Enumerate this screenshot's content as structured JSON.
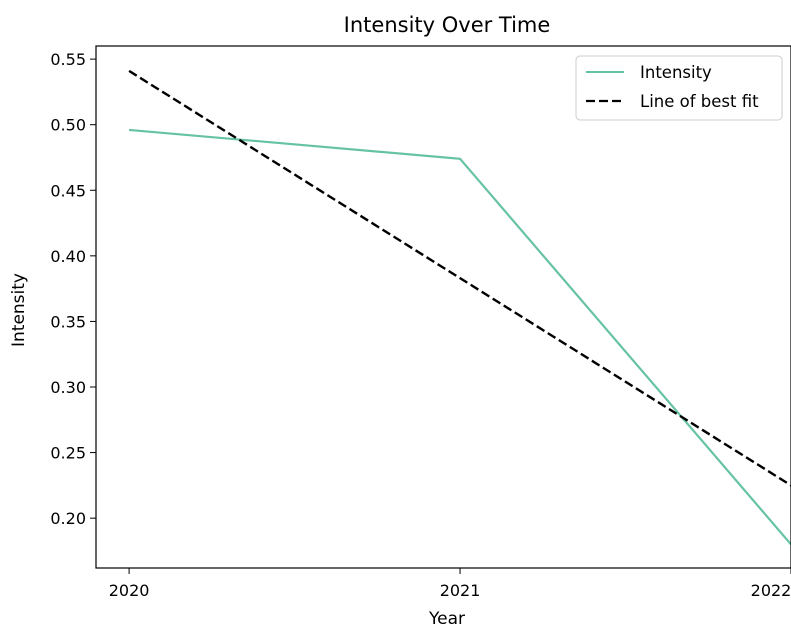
{
  "chart_data": {
    "type": "line",
    "title": "Intensity Over Time",
    "xlabel": "Year",
    "ylabel": "Intensity",
    "x": [
      "2020",
      "2021",
      "2022"
    ],
    "x_values": [
      2020,
      2021,
      2022
    ],
    "series": [
      {
        "name": "Intensity",
        "style": "solid",
        "color": "#66c2a5",
        "values": [
          0.496,
          0.474,
          0.18
        ]
      },
      {
        "name": "Line of best fit",
        "style": "dashed",
        "color": "#000000",
        "values": [
          0.541,
          0.383,
          0.225
        ]
      }
    ],
    "xlim": [
      2019.9,
      2022.0
    ],
    "ylim": [
      0.162,
      0.56
    ],
    "yticks": [
      "0.20",
      "0.25",
      "0.30",
      "0.35",
      "0.40",
      "0.45",
      "0.50",
      "0.55"
    ],
    "grid": false,
    "legend_position": "top-right"
  }
}
